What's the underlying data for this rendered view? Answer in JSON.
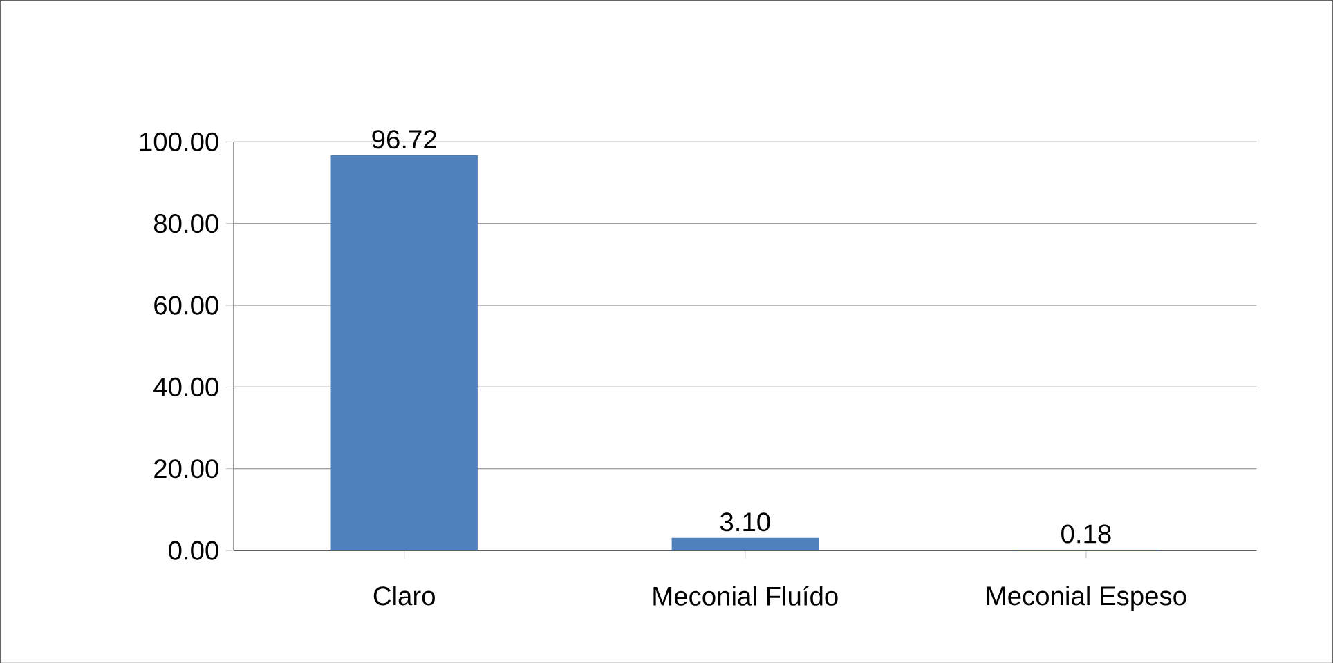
{
  "chart_data": {
    "type": "bar",
    "categories": [
      "Claro",
      "Meconial Fluído",
      "Meconial Espeso"
    ],
    "values": [
      96.72,
      3.1,
      0.18
    ],
    "value_labels": [
      "96.72",
      "3.10",
      "0.18"
    ],
    "color": "#4f81bd",
    "ylim": [
      0,
      100
    ],
    "yticks": [
      {
        "value": 0,
        "label": "0.00"
      },
      {
        "value": 20,
        "label": "20.00"
      },
      {
        "value": 40,
        "label": "40.00"
      },
      {
        "value": 60,
        "label": "60.00"
      },
      {
        "value": 80,
        "label": "80.00"
      },
      {
        "value": 100,
        "label": "100.00"
      }
    ],
    "grid": "y"
  }
}
